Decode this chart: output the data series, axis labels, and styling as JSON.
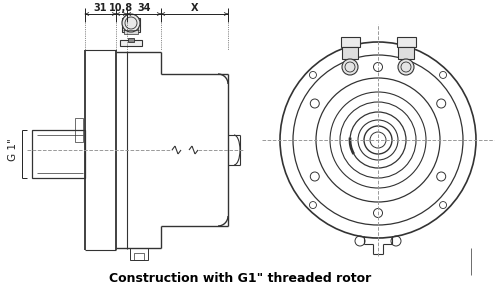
{
  "title": "Construction with G1\" threaded rotor",
  "title_fontsize": 9,
  "bg_color": "#ffffff",
  "line_color": "#333333",
  "dim_color": "#222222",
  "dash_color": "#999999",
  "fig_width": 5.0,
  "fig_height": 2.89,
  "dpi": 100,
  "dim_labels": [
    "31",
    "10,8",
    "34",
    "X"
  ],
  "g1_label": "G 1\""
}
